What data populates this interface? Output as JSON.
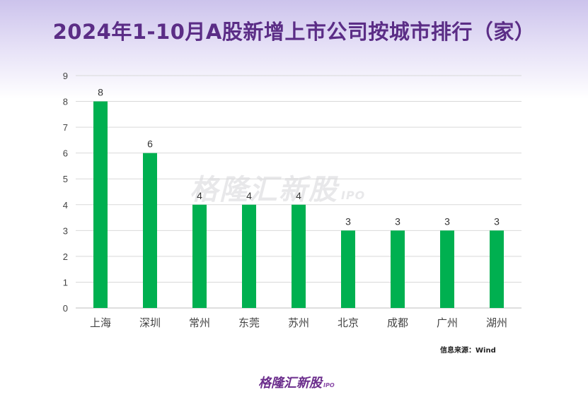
{
  "header": {
    "title": "2024年1-10月A股新增上市公司按城市排行（家）"
  },
  "watermark": {
    "text": "格隆汇新股",
    "sub": "IPO"
  },
  "source": "信息来源：Wind",
  "logo": {
    "text": "格隆汇新股",
    "sub": "IPO"
  },
  "colors": {
    "bar": "#00b050",
    "title": "#5b2d86",
    "grid": "#d9d9d9"
  },
  "chart_data": {
    "type": "bar",
    "title": "2024年1-10月A股新增上市公司按城市排行（家）",
    "categories": [
      "上海",
      "深圳",
      "常州",
      "东莞",
      "苏州",
      "北京",
      "成都",
      "广州",
      "湖州"
    ],
    "values": [
      8,
      6,
      4,
      4,
      4,
      3,
      3,
      3,
      3
    ],
    "ylim": [
      0,
      9
    ],
    "yticks": [
      0,
      1,
      2,
      3,
      4,
      5,
      6,
      7,
      8,
      9
    ],
    "grid": true,
    "data_labels": true,
    "xlabel": "",
    "ylabel": ""
  }
}
